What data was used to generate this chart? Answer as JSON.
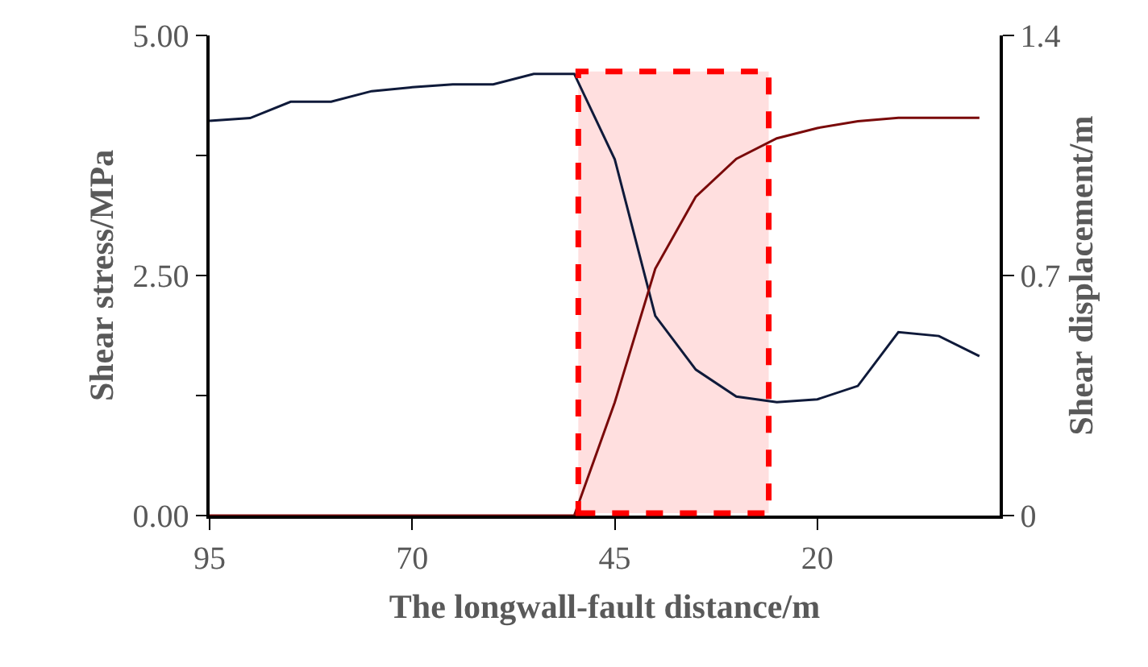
{
  "chart_data": {
    "type": "line",
    "xlabel": "The longwall-fault distance/m",
    "ylabel": "Shear stress/MPa",
    "y2label": "Shear displacement/m",
    "x": [
      95,
      90,
      85,
      80,
      75,
      70,
      65,
      60,
      55,
      50,
      45,
      40,
      35,
      30,
      25,
      20,
      15,
      10,
      5,
      0
    ],
    "series": [
      {
        "color": "#0f1a3a",
        "values": [
          4.11,
          4.14,
          4.31,
          4.31,
          4.42,
          4.46,
          4.49,
          4.49,
          4.6,
          4.6,
          3.71,
          2.08,
          1.52,
          1.24,
          1.18,
          1.21,
          1.35,
          1.91,
          1.87,
          1.66
        ]
      },
      {
        "color": "#7a0a0a",
        "axis": "y2",
        "values": [
          0,
          0,
          0,
          0,
          0,
          0,
          0,
          0,
          0,
          0,
          0.33,
          0.72,
          0.93,
          1.04,
          1.1,
          1.13,
          1.15,
          1.16,
          1.16,
          1.16
        ]
      }
    ],
    "xlim": [
      95,
      -2.5
    ],
    "xticks": [
      95,
      70,
      45,
      20
    ],
    "ylim": [
      0,
      5
    ],
    "yticks": [
      {
        "value": 0,
        "label": "0.00"
      },
      {
        "value": 1.25,
        "label": null
      },
      {
        "value": 2.5,
        "label": "2.50"
      },
      {
        "value": 3.75,
        "label": null
      },
      {
        "value": 5,
        "label": "5.00"
      }
    ],
    "y2lim": [
      0,
      1.4
    ],
    "y2ticks": [
      0,
      0.7,
      1.4
    ],
    "bands": [
      {
        "axis": "x",
        "from": 49.5,
        "to": 26,
        "color": "#ff0000"
      }
    ],
    "grid": false,
    "marker": "none",
    "line_style": "solid"
  }
}
